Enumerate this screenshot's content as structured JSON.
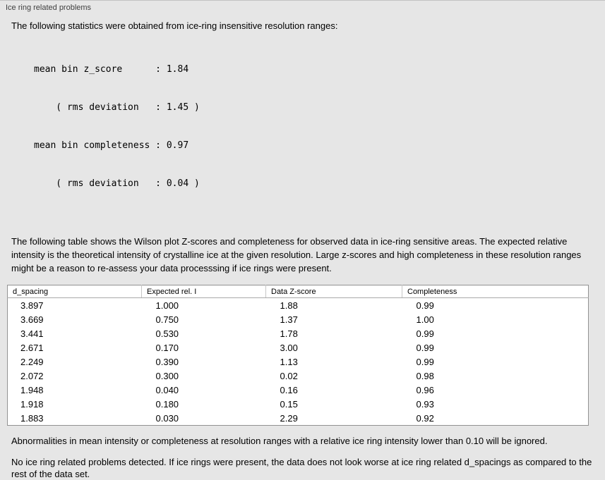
{
  "panel": {
    "title": "Ice ring related problems"
  },
  "stats": {
    "intro": "The following statistics were obtained from ice-ring insensitive resolution ranges:",
    "lines": [
      "mean bin z_score      : 1.84",
      "    ( rms deviation   : 1.45 )",
      "mean bin completeness : 0.97",
      "    ( rms deviation   : 0.04 )"
    ]
  },
  "table_section": {
    "intro": "The following table shows the Wilson plot Z-scores and completeness for observed data in ice-ring sensitive areas. The expected relative intensity is the theoretical intensity of crystalline ice at the given resolution. Large z-scores and high completeness in these resolution ranges might be a reason to re-assess your data processsing if ice rings were present.",
    "headers": [
      "d_spacing",
      "Expected rel. I",
      "Data Z-score",
      "Completeness"
    ],
    "rows": [
      [
        "3.897",
        "1.000",
        "1.88",
        "0.99"
      ],
      [
        "3.669",
        "0.750",
        "1.37",
        "1.00"
      ],
      [
        "3.441",
        "0.530",
        "1.78",
        "0.99"
      ],
      [
        "2.671",
        "0.170",
        "3.00",
        "0.99"
      ],
      [
        "2.249",
        "0.390",
        "1.13",
        "0.99"
      ],
      [
        "2.072",
        "0.300",
        "0.02",
        "0.98"
      ],
      [
        "1.948",
        "0.040",
        "0.16",
        "0.96"
      ],
      [
        "1.918",
        "0.180",
        "0.15",
        "0.93"
      ],
      [
        "1.883",
        "0.030",
        "2.29",
        "0.92"
      ]
    ]
  },
  "notes": {
    "ignore_note": "Abnormalities in mean intensity or completeness at resolution ranges with a relative ice ring intensity lower than 0.10 will be ignored.",
    "conclusion": "No ice ring related problems detected. If ice rings were present, the data does not look worse at ice ring related d_spacings as compared to the rest of the data set."
  },
  "colors": {
    "background": "#e6e6e6",
    "table_background": "#ffffff",
    "table_border": "#929292",
    "text": "#000000",
    "panel_title": "#3f3f3f"
  }
}
